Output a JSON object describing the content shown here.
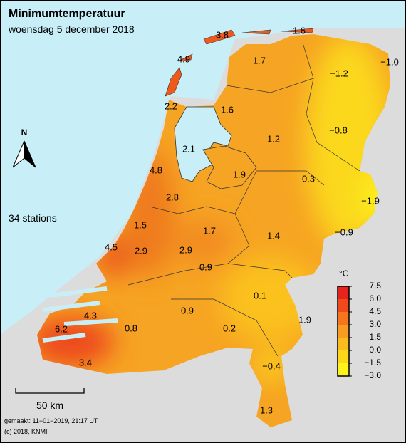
{
  "header": {
    "title": "Minimumtemperatuur",
    "subtitle": "woensdag 5 december 2018"
  },
  "stations_note": "34 stations",
  "north": "N",
  "stations": [
    "3.8",
    "1.6",
    "4.9",
    "1.7",
    "−1.2",
    "−1.0",
    "2.2",
    "1.6",
    "1.2",
    "−0.8",
    "2.1",
    "4.8",
    "1.9",
    "0.3",
    "−1.9",
    "2.8",
    "1.5",
    "1.7",
    "1.4",
    "−0.9",
    "4.5",
    "2.9",
    "2.9",
    "0.9",
    "0.1",
    "0.9",
    "4.3",
    "1.9",
    "6.2",
    "0.8",
    "0.2",
    "−0.4",
    "3.4",
    "1.3"
  ],
  "legend": {
    "unit": "°C",
    "ticks": [
      "7.5",
      "6.0",
      "4.5",
      "3.0",
      "1.5",
      "0.0",
      "−1.5",
      "−3.0"
    ],
    "colors": [
      "#e8221c",
      "#f04a1c",
      "#f5761e",
      "#f89c22",
      "#fbbb1e",
      "#fcd818",
      "#fdf21a"
    ]
  },
  "scale_bar": "50 km",
  "footer": {
    "made": "gemaakt: 11−01−2019, 21:17 UT",
    "copyright": "(c) 2018, KNMI"
  }
}
